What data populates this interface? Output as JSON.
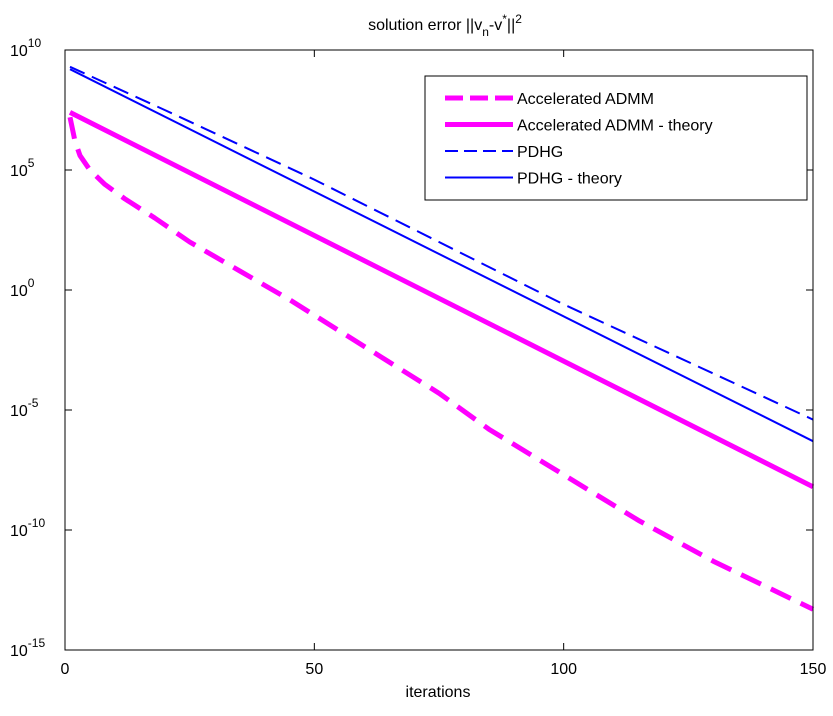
{
  "chart_data": {
    "type": "line",
    "title": "solution error ||v",
    "title_sub": "n",
    "title_mid": "-v",
    "title_sup_star": "*",
    "title_end": "||",
    "title_sup_2": "2",
    "xlabel": "iterations",
    "ylabel": "",
    "xlim": [
      0,
      150
    ],
    "ylim_exp": [
      -15,
      10
    ],
    "yscale": "log",
    "x_ticks": [
      {
        "value": 0,
        "label": "0"
      },
      {
        "value": 50,
        "label": "50"
      },
      {
        "value": 100,
        "label": "100"
      },
      {
        "value": 150,
        "label": "150"
      }
    ],
    "y_ticks": [
      {
        "exp": -15,
        "base": "10",
        "sup": "-15"
      },
      {
        "exp": -10,
        "base": "10",
        "sup": "-10"
      },
      {
        "exp": -5,
        "base": "10",
        "sup": "-5"
      },
      {
        "exp": 0,
        "base": "10",
        "sup": "0"
      },
      {
        "exp": 5,
        "base": "10",
        "sup": "5"
      },
      {
        "exp": 10,
        "base": "10",
        "sup": "10"
      }
    ],
    "grid": false,
    "legend_position": "top-right",
    "series": [
      {
        "name": "Accelerated ADMM",
        "color": "#ff00ff",
        "style": "dashed",
        "weight": "thick",
        "points": [
          [
            1,
            7.2
          ],
          [
            2,
            6.2
          ],
          [
            3,
            5.6
          ],
          [
            5,
            5.0
          ],
          [
            8,
            4.4
          ],
          [
            12,
            3.8
          ],
          [
            18,
            3.0
          ],
          [
            25,
            2.0
          ],
          [
            35,
            0.8
          ],
          [
            45,
            -0.4
          ],
          [
            55,
            -1.7
          ],
          [
            65,
            -3.0
          ],
          [
            75,
            -4.3
          ],
          [
            85,
            -5.8
          ],
          [
            100,
            -7.7
          ],
          [
            115,
            -9.6
          ],
          [
            130,
            -11.3
          ],
          [
            140,
            -12.3
          ],
          [
            150,
            -13.3
          ]
        ]
      },
      {
        "name": "Accelerated ADMM - theory",
        "color": "#ff00ff",
        "style": "solid",
        "weight": "thick",
        "points": [
          [
            1,
            7.4
          ],
          [
            150,
            -8.2
          ]
        ]
      },
      {
        "name": "PDHG",
        "color": "#0000ff",
        "style": "dashed",
        "weight": "thin",
        "points": [
          [
            1,
            9.3
          ],
          [
            20,
            7.5
          ],
          [
            50,
            4.6
          ],
          [
            100,
            -0.6
          ],
          [
            150,
            -5.4
          ]
        ]
      },
      {
        "name": "PDHG - theory",
        "color": "#0000ff",
        "style": "solid",
        "weight": "thin",
        "points": [
          [
            1,
            9.2
          ],
          [
            150,
            -6.3
          ]
        ]
      }
    ]
  }
}
